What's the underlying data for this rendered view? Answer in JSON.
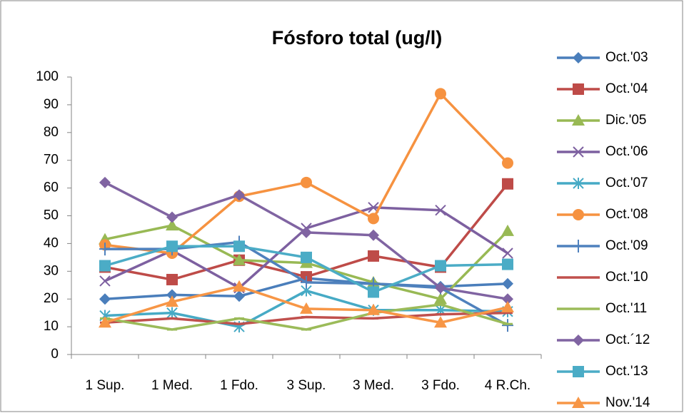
{
  "chart_data": {
    "type": "line",
    "title": "Fósforo total (ug/l)",
    "categories": [
      "1 Sup.",
      "1 Med.",
      "1 Fdo.",
      "3 Sup.",
      "3 Med.",
      "3 Fdo.",
      "4 R.Ch."
    ],
    "series": [
      {
        "name": "Oct.'03",
        "color": "#4a7ebb",
        "marker": "diamond",
        "values": [
          20,
          21.5,
          21,
          27.5,
          25.5,
          24.5,
          25.5
        ]
      },
      {
        "name": "Oct.'04",
        "color": "#be4b48",
        "marker": "square",
        "values": [
          31.5,
          27,
          34,
          28,
          35.5,
          31.5,
          61.5
        ]
      },
      {
        "name": "Dic.'05",
        "color": "#98b954",
        "marker": "triangle",
        "values": [
          41.5,
          46.5,
          34,
          33,
          26,
          20,
          44.5
        ]
      },
      {
        "name": "Oct.'06",
        "color": "#7d60a0",
        "marker": "x",
        "values": [
          26.5,
          37.5,
          24,
          45.5,
          53,
          52,
          36.5
        ]
      },
      {
        "name": "Oct.'07",
        "color": "#46aac5",
        "marker": "star",
        "values": [
          14,
          15,
          10,
          23,
          16,
          16,
          15.5
        ]
      },
      {
        "name": "Oct.'08",
        "color": "#f69240",
        "marker": "circle",
        "values": [
          39.5,
          36.5,
          57,
          62,
          49,
          94,
          69
        ]
      },
      {
        "name": "Oct.'09",
        "color": "#4f81bd",
        "marker": "plus",
        "values": [
          38,
          38,
          40.5,
          26,
          25.5,
          24,
          10.5
        ]
      },
      {
        "name": "Oct.'10",
        "color": "#c0504d",
        "marker": "dash",
        "values": [
          11.5,
          13,
          11,
          13.5,
          13,
          14.5,
          15
        ]
      },
      {
        "name": "Oct.'11",
        "color": "#9bbb59",
        "marker": "dash",
        "values": [
          13,
          9,
          13,
          9,
          15,
          18,
          11
        ]
      },
      {
        "name": "Oct.´12",
        "color": "#8064a2",
        "marker": "diamond",
        "values": [
          62,
          49.5,
          57.5,
          44,
          43,
          24,
          20
        ]
      },
      {
        "name": "Oct.'13",
        "color": "#4bacc6",
        "marker": "square",
        "values": [
          32,
          39,
          39,
          35,
          22.5,
          32,
          32.5
        ]
      },
      {
        "name": "Nov.'14",
        "color": "#f79646",
        "marker": "triangle",
        "values": [
          11.5,
          19,
          24.5,
          16.5,
          16,
          11.5,
          17
        ]
      }
    ],
    "ylim": [
      0,
      100
    ],
    "yticks": [
      0,
      10,
      20,
      30,
      40,
      50,
      60,
      70,
      80,
      90,
      100
    ],
    "grid": false,
    "legend": "right"
  }
}
